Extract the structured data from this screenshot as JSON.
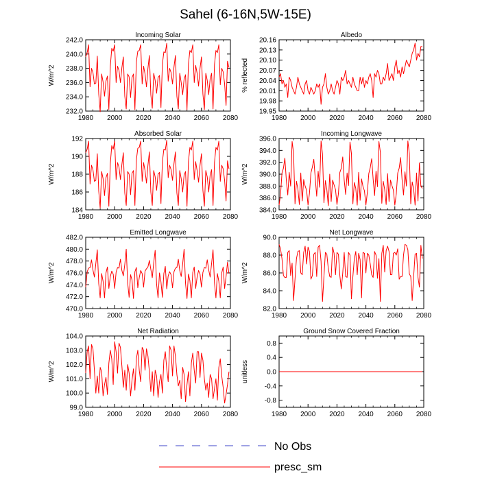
{
  "figure": {
    "title": "Sahel (6-16N,5W-15E)"
  },
  "legend": {
    "entries": [
      {
        "label": "No Obs",
        "color": "#3c46c8",
        "style": "dashed"
      },
      {
        "label": "presc_sm",
        "color": "#ff0000",
        "style": "solid"
      }
    ]
  },
  "chart_data": [
    {
      "type": "line",
      "title": "Incoming Solar",
      "ylabel": "W/m^2",
      "xlim": [
        1980,
        2080
      ],
      "ylim": [
        232.0,
        242.0
      ],
      "xticks": [
        1980,
        2000,
        2020,
        2040,
        2060,
        2080
      ],
      "yticks": [
        232.0,
        234.0,
        236.0,
        238.0,
        240.0,
        242.0
      ],
      "ytick_labels": [
        "232.0",
        "234.0",
        "236.0",
        "238.0",
        "240.0",
        "242.0"
      ],
      "series": [
        {
          "name": "presc_sm",
          "color": "#ff0000",
          "x_start": 1980,
          "x_step": 1,
          "values": [
            239.6,
            240.2,
            241.3,
            235.4,
            238.0,
            237.4,
            235.8,
            235.9,
            239.7,
            234.4,
            231.9,
            237.2,
            236.1,
            234.1,
            236.2,
            236.9,
            232.2,
            238.3,
            240.8,
            240.4,
            241.3,
            236.0,
            238.3,
            237.7,
            236.0,
            238.1,
            239.6,
            234.1,
            232.3,
            237.2,
            236.8,
            233.9,
            236.7,
            237.2,
            232.2,
            238.9,
            240.4,
            240.5,
            241.3,
            235.8,
            238.3,
            237.2,
            235.4,
            238.0,
            239.8,
            234.3,
            232.4,
            237.3,
            236.3,
            234.5,
            236.7,
            237.0,
            232.5,
            238.6,
            240.3,
            240.2,
            241.5,
            236.2,
            238.0,
            237.4,
            235.8,
            238.2,
            239.8,
            234.1,
            232.3,
            237.3,
            236.0,
            234.3,
            236.5,
            237.1,
            232.2,
            238.6,
            240.5,
            240.2,
            241.3,
            236.0,
            238.4,
            237.3,
            235.5,
            238.0,
            239.6,
            234.4,
            232.2,
            237.3,
            236.3,
            234.3,
            236.5,
            237.3,
            232.3,
            238.5,
            240.5,
            240.2,
            241.3,
            235.7,
            238.0,
            237.5,
            235.8,
            232.8,
            239.0,
            238.1
          ]
        }
      ]
    },
    {
      "type": "line",
      "title": "Albedo",
      "ylabel": "% reflected",
      "xlim": [
        1980,
        2080
      ],
      "ylim": [
        19.95,
        20.16
      ],
      "xticks": [
        1980,
        2000,
        2020,
        2040,
        2060,
        2080
      ],
      "yticks": [
        19.95,
        19.98,
        20.01,
        20.04,
        20.07,
        20.1,
        20.13,
        20.16
      ],
      "ytick_labels": [
        "19.95",
        "19.98",
        "20.01",
        "20.04",
        "20.07",
        "20.10",
        "20.13",
        "20.16"
      ],
      "series": [
        {
          "name": "presc_sm",
          "color": "#ff0000",
          "x_start": 1980,
          "x_step": 1,
          "values": [
            20.05,
            20.06,
            20.03,
            20.04,
            20.02,
            20.03,
            19.99,
            20.05,
            20.04,
            20.02,
            20.01,
            20.0,
            20.02,
            20.05,
            20.03,
            20.02,
            20.01,
            20.0,
            20.03,
            20.04,
            20.01,
            20.0,
            20.02,
            20.01,
            20.0,
            20.01,
            20.03,
            20.02,
            20.03,
            19.97,
            20.02,
            20.03,
            20.06,
            20.02,
            20.0,
            20.01,
            20.03,
            20.01,
            20.0,
            20.02,
            20.04,
            20.03,
            20.0,
            20.05,
            20.04,
            20.05,
            20.07,
            20.03,
            20.04,
            20.03,
            20.02,
            20.05,
            20.03,
            20.02,
            20.01,
            20.01,
            20.05,
            20.03,
            20.05,
            20.02,
            20.04,
            20.03,
            20.05,
            20.06,
            20.04,
            19.99,
            20.06,
            20.05,
            20.07,
            20.06,
            20.03,
            20.03,
            20.05,
            20.04,
            20.06,
            20.09,
            20.04,
            20.05,
            20.06,
            20.04,
            20.08,
            20.1,
            20.06,
            20.07,
            20.05,
            20.08,
            20.06,
            20.08,
            20.1,
            20.09,
            20.08,
            20.1,
            20.12,
            20.13,
            20.15,
            20.1,
            20.12,
            20.11,
            20.14,
            20.14
          ]
        }
      ]
    },
    {
      "type": "line",
      "title": "Absorbed Solar",
      "ylabel": "W/m^2",
      "xlim": [
        1980,
        2080
      ],
      "ylim": [
        184,
        192
      ],
      "xticks": [
        1980,
        2000,
        2020,
        2040,
        2060,
        2080
      ],
      "yticks": [
        184,
        186,
        188,
        190,
        192
      ],
      "ytick_labels": [
        "184",
        "186",
        "188",
        "190",
        "192"
      ],
      "series": [
        {
          "name": "presc_sm",
          "color": "#ff0000",
          "x_start": 1980,
          "x_step": 1,
          "values": [
            190.4,
            190.8,
            191.7,
            186.9,
            189.0,
            188.5,
            187.2,
            187.3,
            190.3,
            186.1,
            184.2,
            188.3,
            187.5,
            185.6,
            187.6,
            188.1,
            184.4,
            189.2,
            191.2,
            190.8,
            191.7,
            187.4,
            189.3,
            188.8,
            187.4,
            189.1,
            190.4,
            185.9,
            184.5,
            188.3,
            188.0,
            185.7,
            188.1,
            188.4,
            184.5,
            189.6,
            190.9,
            191.0,
            191.7,
            187.2,
            189.3,
            188.4,
            187.0,
            189.0,
            190.5,
            186.0,
            184.5,
            188.4,
            187.7,
            186.2,
            188.0,
            188.2,
            184.7,
            189.4,
            190.8,
            190.7,
            191.8,
            187.6,
            189.0,
            188.5,
            187.3,
            189.2,
            190.5,
            185.9,
            184.5,
            188.4,
            187.5,
            186.0,
            187.9,
            188.3,
            184.4,
            189.4,
            191.0,
            190.7,
            191.7,
            187.4,
            189.4,
            188.4,
            187.1,
            189.0,
            190.3,
            186.2,
            184.4,
            188.4,
            187.7,
            186.0,
            187.9,
            188.5,
            184.5,
            189.3,
            191.0,
            190.7,
            191.7,
            187.2,
            189.0,
            188.6,
            187.3,
            185.0,
            189.5,
            188.6
          ]
        }
      ]
    },
    {
      "type": "line",
      "title": "Incoming Longwave",
      "ylabel": "W/m^2",
      "xlim": [
        1980,
        2080
      ],
      "ylim": [
        384.0,
        396.0
      ],
      "xticks": [
        1980,
        2000,
        2020,
        2040,
        2060,
        2080
      ],
      "yticks": [
        384.0,
        386.0,
        388.0,
        390.0,
        392.0,
        394.0,
        396.0
      ],
      "ytick_labels": [
        "384.0",
        "386.0",
        "388.0",
        "390.0",
        "392.0",
        "394.0",
        "396.0"
      ],
      "series": [
        {
          "name": "presc_sm",
          "color": "#ff0000",
          "x_start": 1980,
          "x_step": 1,
          "values": [
            384.8,
            386.6,
            390.2,
            391.0,
            392.7,
            389.0,
            386.5,
            390.3,
            388.0,
            395.5,
            393.6,
            385.0,
            388.8,
            387.5,
            384.9,
            390.2,
            385.5,
            389.1,
            388.0,
            387.3,
            384.8,
            386.8,
            390.2,
            391.2,
            392.5,
            389.3,
            386.3,
            390.5,
            387.8,
            395.6,
            393.4,
            385.2,
            388.9,
            387.4,
            384.7,
            390.0,
            385.4,
            389.0,
            388.2,
            387.4,
            384.9,
            386.7,
            390.3,
            391.0,
            392.9,
            389.0,
            386.6,
            390.2,
            388.1,
            395.4,
            393.5,
            385.0,
            388.6,
            387.6,
            384.8,
            390.3,
            385.6,
            389.2,
            387.9,
            387.2,
            384.8,
            386.9,
            390.1,
            391.1,
            392.6,
            389.2,
            386.4,
            390.5,
            387.9,
            395.5,
            393.7,
            385.1,
            388.8,
            387.4,
            384.9,
            390.1,
            385.4,
            389.0,
            388.1,
            387.3,
            384.8,
            386.7,
            390.2,
            391.0,
            392.8,
            389.1,
            386.5,
            390.4,
            388.0,
            395.6,
            393.5,
            385.0,
            388.7,
            387.5,
            384.8,
            390.2,
            385.5,
            391.9,
            388.0,
            387.6
          ]
        }
      ]
    },
    {
      "type": "line",
      "title": "Emitted Longwave",
      "ylabel": "W/m^2",
      "xlim": [
        1980,
        2080
      ],
      "ylim": [
        470.0,
        482.0
      ],
      "xticks": [
        1980,
        2000,
        2020,
        2040,
        2060,
        2080
      ],
      "yticks": [
        470.0,
        472.0,
        474.0,
        476.0,
        478.0,
        480.0,
        482.0
      ],
      "ytick_labels": [
        "470.0",
        "472.0",
        "474.0",
        "476.0",
        "478.0",
        "480.0",
        "482.0"
      ],
      "series": [
        {
          "name": "presc_sm",
          "color": "#ff0000",
          "x_start": 1980,
          "x_step": 1,
          "values": [
            473.6,
            476.2,
            476.8,
            476.9,
            478.2,
            476.5,
            475.3,
            477.6,
            479.9,
            474.2,
            471.8,
            475.9,
            474.6,
            471.8,
            476.0,
            477.0,
            473.4,
            475.4,
            476.3,
            475.8,
            473.4,
            476.1,
            476.9,
            476.8,
            478.3,
            476.4,
            475.5,
            477.4,
            480.0,
            474.3,
            471.9,
            475.7,
            474.8,
            471.7,
            476.2,
            476.9,
            473.5,
            475.2,
            476.4,
            475.9,
            473.6,
            476.3,
            476.7,
            477.0,
            478.1,
            476.6,
            475.2,
            477.7,
            479.8,
            474.1,
            471.8,
            476.0,
            474.5,
            471.9,
            475.9,
            477.1,
            473.3,
            475.5,
            476.2,
            475.7,
            473.5,
            476.2,
            476.8,
            476.9,
            478.3,
            476.4,
            475.4,
            477.5,
            480.0,
            474.2,
            471.7,
            475.8,
            474.7,
            471.8,
            476.1,
            477.0,
            473.4,
            475.3,
            476.4,
            475.8,
            473.6,
            476.1,
            476.9,
            476.8,
            478.2,
            476.5,
            475.3,
            477.6,
            479.9,
            474.3,
            471.8,
            475.9,
            474.6,
            471.8,
            476.0,
            477.0,
            473.4,
            475.4,
            477.8,
            475.9
          ]
        }
      ]
    },
    {
      "type": "line",
      "title": "Net Longwave",
      "ylabel": "W/m^2",
      "xlim": [
        1980,
        2080
      ],
      "ylim": [
        82.0,
        90.0
      ],
      "xticks": [
        1980,
        2000,
        2020,
        2040,
        2060,
        2080
      ],
      "yticks": [
        82.0,
        84.0,
        86.0,
        88.0,
        90.0
      ],
      "ytick_labels": [
        "82.0",
        "84.0",
        "86.0",
        "88.0",
        "90.0"
      ],
      "series": [
        {
          "name": "presc_sm",
          "color": "#ff0000",
          "x_start": 1980,
          "x_step": 1,
          "values": [
            89.2,
            88.7,
            87.6,
            85.7,
            85.5,
            85.5,
            88.3,
            88.5,
            85.7,
            87.1,
            82.9,
            85.3,
            87.6,
            88.4,
            88.5,
            86.0,
            85.8,
            88.3,
            89.0,
            87.0,
            88.9,
            88.4,
            85.3,
            85.7,
            88.1,
            88.3,
            85.6,
            88.9,
            89.1,
            87.3,
            82.8,
            85.6,
            88.3,
            88.1,
            86.5,
            85.6,
            85.5,
            88.9,
            88.2,
            85.8,
            88.3,
            88.1,
            85.7,
            84.2,
            86.0,
            88.3,
            85.6,
            85.5,
            88.3,
            88.0,
            83.1,
            85.6,
            87.6,
            88.4,
            85.8,
            88.2,
            87.5,
            83.2,
            88.3,
            88.2,
            86.0,
            88.2,
            88.0,
            87.0,
            85.8,
            85.5,
            88.4,
            88.0,
            85.4,
            87.6,
            82.8,
            88.2,
            89.1,
            86.1,
            88.5,
            89.0,
            88.4,
            85.8,
            85.8,
            88.2,
            88.3,
            88.0,
            88.7,
            85.3,
            85.6,
            85.6,
            88.0,
            89.2,
            89.1,
            88.6,
            85.9,
            85.6,
            82.9,
            85.6,
            88.1,
            88.2,
            85.5,
            84.4,
            89.1,
            87.6
          ]
        }
      ]
    },
    {
      "type": "line",
      "title": "Net Radiation",
      "ylabel": "W/m^2",
      "xlim": [
        1980,
        2080
      ],
      "ylim": [
        99.0,
        104.0
      ],
      "xticks": [
        1980,
        2000,
        2020,
        2040,
        2060,
        2080
      ],
      "yticks": [
        99.0,
        100.0,
        101.0,
        102.0,
        103.0,
        104.0
      ],
      "ytick_labels": [
        "99.0",
        "100.0",
        "101.0",
        "102.0",
        "103.0",
        "104.0"
      ],
      "series": [
        {
          "name": "presc_sm",
          "color": "#ff0000",
          "x_start": 1980,
          "x_step": 1,
          "values": [
            101.4,
            102.9,
            103.3,
            101.0,
            103.4,
            103.1,
            101.6,
            100.0,
            101.2,
            100.0,
            101.8,
            101.5,
            99.8,
            100.6,
            101.1,
            99.9,
            102.1,
            103.0,
            102.4,
            100.6,
            103.6,
            102.9,
            101.4,
            103.5,
            103.2,
            101.9,
            100.4,
            101.6,
            100.2,
            102.0,
            101.4,
            99.8,
            100.9,
            101.7,
            100.2,
            102.4,
            103.0,
            101.6,
            100.8,
            103.2,
            103.0,
            101.6,
            103.1,
            102.6,
            101.5,
            100.1,
            101.5,
            99.8,
            101.6,
            101.2,
            99.7,
            100.8,
            101.3,
            100.0,
            102.3,
            102.9,
            101.7,
            100.8,
            103.3,
            103.0,
            101.2,
            103.3,
            102.6,
            101.3,
            100.5,
            100.9,
            99.6,
            101.8,
            101.3,
            99.4,
            100.6,
            101.5,
            99.8,
            102.1,
            102.8,
            101.6,
            100.7,
            102.9,
            102.9,
            101.1,
            102.8,
            102.3,
            101.0,
            100.2,
            100.7,
            99.7,
            101.3,
            101.0,
            99.6,
            100.3,
            101.0,
            99.5,
            101.8,
            102.4,
            101.2,
            100.4,
            99.3,
            99.9,
            100.6,
            101.5
          ]
        }
      ]
    },
    {
      "type": "line",
      "title": "Ground Snow Covered Fraction",
      "ylabel": "unitless",
      "xlim": [
        1980,
        2080
      ],
      "ylim": [
        -1.0,
        1.0
      ],
      "xticks": [
        1980,
        2000,
        2020,
        2040,
        2060,
        2080
      ],
      "yticks": [
        -0.8,
        -0.4,
        0.0,
        0.4,
        0.8
      ],
      "ytick_labels": [
        "-0.8",
        "-0.4",
        "0.0",
        "0.4",
        "0.8"
      ],
      "series": [
        {
          "name": "presc_sm",
          "color": "#ff0000",
          "x": [
            1980,
            2079
          ],
          "values": [
            0.0,
            0.0
          ]
        }
      ]
    }
  ]
}
